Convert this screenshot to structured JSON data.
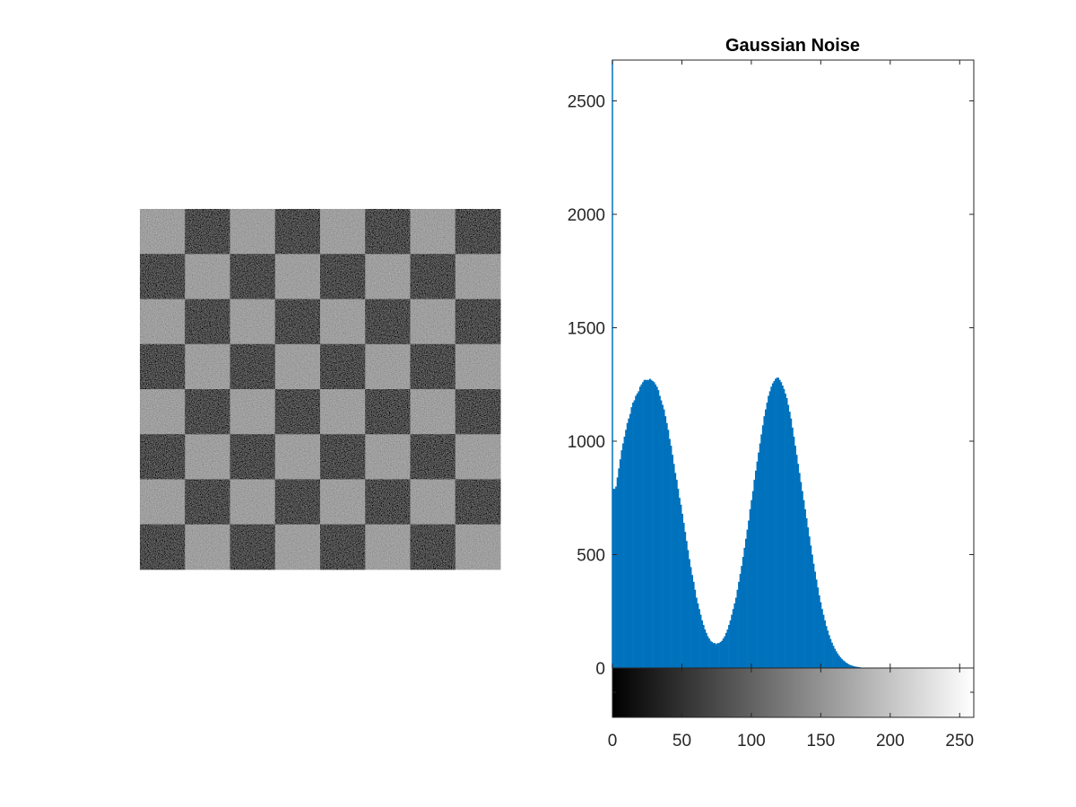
{
  "figure": {
    "background": "#ffffff"
  },
  "checkerboard": {
    "rows": 8,
    "cols": 8,
    "first_cell": "light",
    "light_level": 150,
    "dark_level": 25,
    "noise": "gaussian"
  },
  "chart_data": {
    "type": "bar",
    "title": "Gaussian Noise",
    "xlabel": "",
    "ylabel": "",
    "xlim": [
      0,
      255
    ],
    "ylim": [
      0,
      2680
    ],
    "x_ticks": [
      0,
      50,
      100,
      150,
      200,
      250
    ],
    "y_ticks": [
      0,
      500,
      1000,
      1500,
      2000,
      2500
    ],
    "bar_color": "#0072bd",
    "grid": false,
    "bins": "0-255, step 1",
    "values": [
      790,
      790,
      800,
      840,
      880,
      920,
      960,
      990,
      1020,
      1050,
      1080,
      1100,
      1120,
      1150,
      1170,
      1180,
      1200,
      1210,
      1220,
      1240,
      1250,
      1260,
      1270,
      1270,
      1270,
      1270,
      1275,
      1270,
      1265,
      1260,
      1250,
      1240,
      1225,
      1200,
      1180,
      1160,
      1140,
      1110,
      1080,
      1050,
      1010,
      980,
      940,
      900,
      860,
      830,
      790,
      750,
      720,
      680,
      640,
      600,
      560,
      520,
      480,
      445,
      410,
      380,
      345,
      310,
      285,
      260,
      235,
      210,
      190,
      170,
      155,
      140,
      130,
      120,
      115,
      110,
      110,
      105,
      110,
      110,
      115,
      120,
      130,
      140,
      155,
      170,
      190,
      210,
      235,
      260,
      285,
      310,
      345,
      380,
      415,
      450,
      490,
      530,
      570,
      610,
      650,
      700,
      740,
      780,
      830,
      870,
      910,
      950,
      990,
      1030,
      1070,
      1110,
      1140,
      1170,
      1200,
      1220,
      1240,
      1255,
      1265,
      1275,
      1280,
      1280,
      1270,
      1260,
      1245,
      1230,
      1210,
      1190,
      1160,
      1130,
      1100,
      1060,
      1020,
      980,
      940,
      900,
      860,
      820,
      780,
      740,
      700,
      660,
      620,
      580,
      540,
      500,
      460,
      425,
      390,
      355,
      320,
      290,
      260,
      235,
      210,
      185,
      165,
      145,
      128,
      112,
      98,
      85,
      74,
      64,
      55,
      47,
      40,
      34,
      29,
      24,
      20,
      16,
      13,
      11,
      9,
      7,
      6,
      5,
      4,
      3,
      2,
      2,
      1,
      1,
      1,
      0,
      0,
      0,
      0,
      0,
      0,
      0,
      0,
      0,
      0,
      0,
      0,
      0,
      0,
      0,
      0,
      0,
      0,
      0,
      0,
      0,
      0,
      0,
      0,
      0,
      0,
      0,
      0,
      0,
      0,
      0,
      0,
      0,
      0,
      0,
      0,
      0,
      0,
      0,
      0,
      0,
      0,
      0,
      0,
      0,
      0,
      0,
      0,
      0,
      0,
      0,
      0,
      0,
      0,
      0,
      0,
      0,
      0,
      0,
      0,
      0,
      0,
      0,
      0,
      0,
      0,
      0,
      0,
      0,
      0,
      0,
      0,
      0,
      0,
      0,
      0,
      0,
      0,
      0,
      0,
      0,
      0,
      0,
      0,
      0,
      0
    ],
    "colorbar": {
      "min": 0,
      "max": 255,
      "colormap": "gray"
    }
  }
}
